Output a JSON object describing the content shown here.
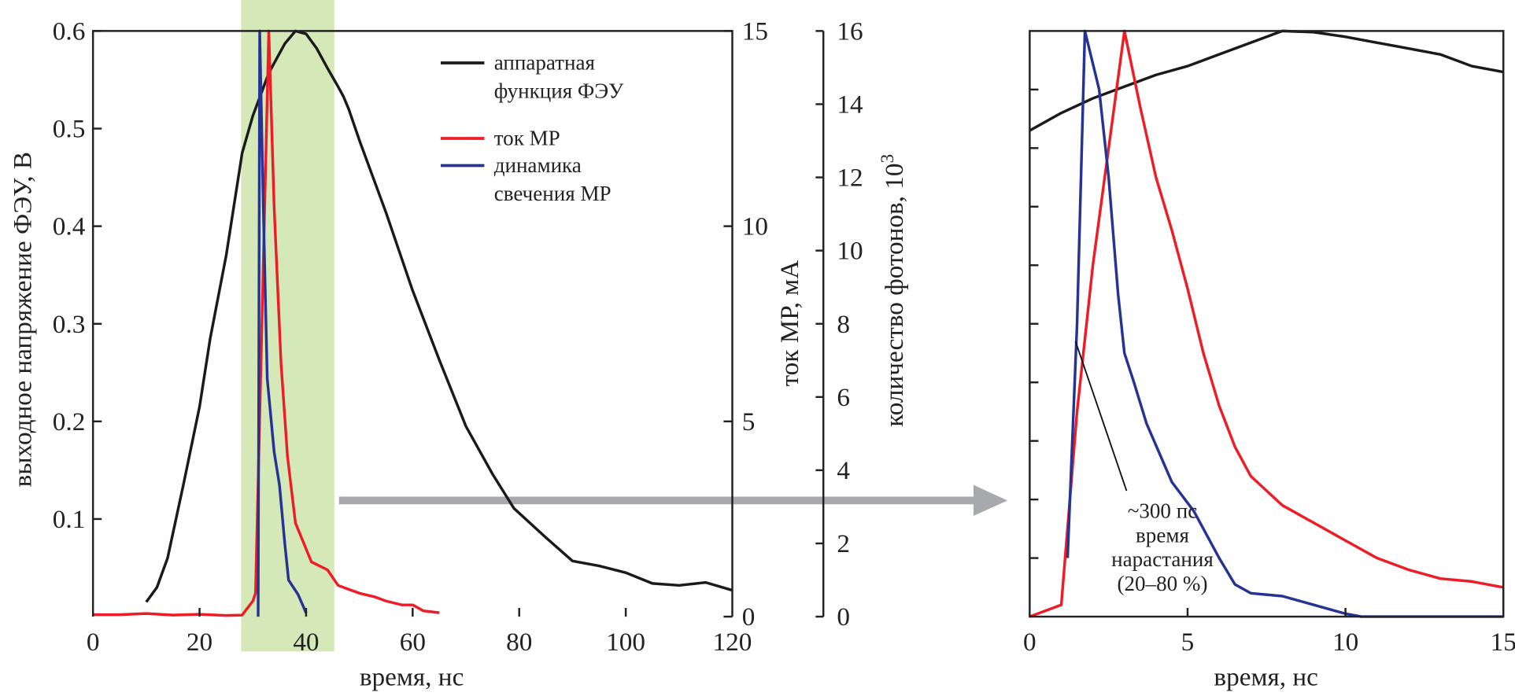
{
  "chart_data": [
    {
      "type": "line",
      "xlabel": "время, нс",
      "ylabel": "выходное напряжение ФЭУ, В",
      "y2label": "ток МР, мА",
      "y3label": "количество фотонов, 10",
      "y3label_sup": "3",
      "xlim": [
        0,
        120
      ],
      "ylim": [
        0,
        0.6
      ],
      "y2lim": [
        0,
        15
      ],
      "y3lim": [
        0,
        16
      ],
      "xticks": [
        "0",
        "20",
        "40",
        "60",
        "80",
        "100",
        "120"
      ],
      "yticks": [
        "0.1",
        "0.2",
        "0.3",
        "0.4",
        "0.5",
        "0.6"
      ],
      "y2ticks": [
        "0",
        "5",
        "10",
        "15"
      ],
      "y3ticks": [
        "0",
        "2",
        "4",
        "6",
        "8",
        "10",
        "12",
        "14",
        "16"
      ],
      "highlight_band": {
        "x": [
          27.8,
          45.3
        ],
        "color": "#d5e8b8"
      },
      "legend_position": "top-right",
      "series": [
        {
          "name": "аппаратная функция ФЭУ",
          "name_lines": [
            "аппаратная",
            "функция ФЭУ"
          ],
          "axis": "y",
          "color": "#1a1a1a",
          "x": [
            10,
            12,
            14,
            17,
            20,
            22,
            25,
            28,
            30,
            33,
            36,
            38,
            40,
            42,
            44,
            46,
            47,
            48,
            50,
            55,
            60,
            65,
            70,
            75,
            79,
            85,
            90,
            95,
            100,
            105,
            110,
            115,
            120
          ],
          "y": [
            0.015,
            0.03,
            0.06,
            0.136,
            0.215,
            0.285,
            0.37,
            0.475,
            0.513,
            0.557,
            0.587,
            0.6,
            0.597,
            0.582,
            0.562,
            0.543,
            0.533,
            0.52,
            0.488,
            0.414,
            0.334,
            0.263,
            0.195,
            0.146,
            0.111,
            0.081,
            0.057,
            0.052,
            0.045,
            0.034,
            0.032,
            0.035,
            0.027
          ]
        },
        {
          "name": "ток МР",
          "name_lines": [
            "ток МР"
          ],
          "axis": "y2",
          "color": "#ee1c25",
          "x": [
            0,
            5,
            10,
            15,
            20,
            25,
            28,
            30,
            30.5,
            33,
            34,
            35.3,
            36.5,
            38,
            41,
            44,
            46,
            48,
            50,
            53,
            55,
            58,
            60,
            62,
            65
          ],
          "y": [
            0.05,
            0.05,
            0.08,
            0.04,
            0.06,
            0.03,
            0.04,
            0.4,
            0.6,
            15,
            10.5,
            6.5,
            4.1,
            2.4,
            1.4,
            1.2,
            0.8,
            0.7,
            0.6,
            0.5,
            0.4,
            0.3,
            0.3,
            0.15,
            0.1
          ]
        },
        {
          "name": "динамика свечения МР",
          "name_lines": [
            "динамика",
            "свечения МР"
          ],
          "axis": "y3",
          "color": "#253494",
          "x": [
            31,
            31.3,
            32,
            32.7,
            34,
            35,
            36,
            36.7,
            38.5,
            40
          ],
          "y": [
            0,
            16,
            11,
            6.5,
            4.5,
            3.6,
            2,
            1,
            0.6,
            0.1
          ]
        }
      ]
    },
    {
      "type": "line",
      "xlabel": "время, нс",
      "xlim": [
        0,
        15
      ],
      "ylim": [
        0,
        1
      ],
      "xticks": [
        "0",
        "5",
        "10",
        "15"
      ],
      "annotation": {
        "lines": [
          "~300 пс",
          "время",
          "нарастания",
          "(20–80 %)"
        ],
        "point": [
          1.45,
          0.47
        ]
      },
      "series": [
        {
          "axis": "y",
          "color": "#1a1a1a",
          "x": [
            0,
            1,
            2,
            3,
            4,
            5,
            6,
            7,
            8,
            9,
            10,
            11,
            12,
            13,
            14,
            15
          ],
          "y": [
            0.83,
            0.86,
            0.885,
            0.905,
            0.925,
            0.94,
            0.96,
            0.98,
            1.0,
            0.998,
            0.99,
            0.98,
            0.97,
            0.96,
            0.94,
            0.93
          ]
        },
        {
          "axis": "y",
          "color": "#ee1c25",
          "x": [
            0,
            1,
            1.5,
            2,
            2.5,
            3,
            3.5,
            4,
            4.5,
            5,
            5.5,
            6,
            6.5,
            7,
            8,
            9,
            10,
            11,
            12,
            13,
            14,
            15
          ],
          "y": [
            0,
            0.02,
            0.35,
            0.6,
            0.8,
            1.0,
            0.87,
            0.75,
            0.66,
            0.56,
            0.45,
            0.36,
            0.29,
            0.24,
            0.19,
            0.16,
            0.13,
            0.1,
            0.08,
            0.065,
            0.06,
            0.05
          ]
        },
        {
          "axis": "y",
          "color": "#253494",
          "x": [
            1.2,
            1.5,
            1.75,
            2.2,
            2.5,
            2.8,
            3,
            3.3,
            3.7,
            4.5,
            5.2,
            6,
            6.5,
            7,
            8,
            9,
            10,
            10.5,
            15
          ],
          "y": [
            0.1,
            0.5,
            1.0,
            0.9,
            0.75,
            0.55,
            0.45,
            0.4,
            0.33,
            0.23,
            0.18,
            0.1,
            0.055,
            0.04,
            0.035,
            0.02,
            0.005,
            0,
            0
          ]
        }
      ]
    }
  ],
  "arrow_color": "#a7a9ac"
}
